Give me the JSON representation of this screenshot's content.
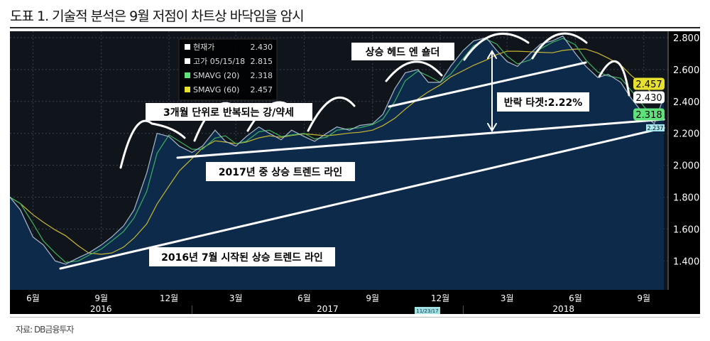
{
  "title": "도표 1. 기술적 분석은 9월 저점이 차트상 바닥임을 암시",
  "source": "자료: DB금융투자",
  "chart_data": {
    "type": "line",
    "title": "",
    "ylim": [
      1.2,
      2.86
    ],
    "yticks": [
      "1.400",
      "1.600",
      "1.800",
      "2.000",
      "2.200",
      "2.400",
      "2.600",
      "2.800"
    ],
    "xticks": [
      "6월",
      "9월",
      "12월",
      "3월",
      "6월",
      "9월",
      "12월",
      "3월",
      "6월",
      "9월"
    ],
    "years": [
      "2016",
      "2017",
      "2018"
    ],
    "cursor_date": "11/23/17",
    "grid": true,
    "legend": {
      "placement": "top-left",
      "items": [
        {
          "label": "현재가",
          "value": "2.430",
          "color": "#ffffff"
        },
        {
          "label": "고가 05/15/18",
          "value": "2.815",
          "color": "#ffffff"
        },
        {
          "label": "SMAVG (20)",
          "value": "2.318",
          "color": "#5ee07a"
        },
        {
          "label": "SMAVG (60)",
          "value": "2.457",
          "color": "#e8e030"
        }
      ]
    },
    "last_labels": [
      {
        "value": "2.457",
        "color": "#e8e030"
      },
      {
        "value": "2.430",
        "color": "#ffffff"
      },
      {
        "value": "2.318",
        "color": "#5ee07a"
      },
      {
        "value": "2.237",
        "color": "#a8e8f0"
      }
    ],
    "series": {
      "x": [
        "2016-05-01",
        "2016-05-15",
        "2016-06-01",
        "2016-06-15",
        "2016-07-01",
        "2016-07-15",
        "2016-08-01",
        "2016-08-15",
        "2016-09-01",
        "2016-09-15",
        "2016-10-01",
        "2016-10-15",
        "2016-11-01",
        "2016-11-15",
        "2016-12-01",
        "2016-12-15",
        "2017-01-01",
        "2017-01-15",
        "2017-02-01",
        "2017-02-15",
        "2017-03-01",
        "2017-03-15",
        "2017-04-01",
        "2017-04-15",
        "2017-05-01",
        "2017-05-15",
        "2017-06-01",
        "2017-06-15",
        "2017-07-01",
        "2017-07-15",
        "2017-08-01",
        "2017-08-15",
        "2017-09-01",
        "2017-09-15",
        "2017-10-01",
        "2017-10-15",
        "2017-11-01",
        "2017-11-15",
        "2017-12-01",
        "2017-12-15",
        "2018-01-01",
        "2018-01-15",
        "2018-02-01",
        "2018-02-15",
        "2018-03-01",
        "2018-03-15",
        "2018-04-01",
        "2018-04-15",
        "2018-05-01",
        "2018-05-15",
        "2018-06-01",
        "2018-06-15",
        "2018-07-01",
        "2018-07-15",
        "2018-08-01",
        "2018-08-15",
        "2018-09-01",
        "2018-09-15",
        "2018-09-28"
      ],
      "values": [
        1.8,
        1.72,
        1.55,
        1.5,
        1.4,
        1.38,
        1.42,
        1.45,
        1.5,
        1.55,
        1.62,
        1.72,
        1.95,
        2.2,
        2.18,
        2.12,
        2.08,
        2.12,
        2.22,
        2.15,
        2.12,
        2.18,
        2.24,
        2.2,
        2.16,
        2.22,
        2.18,
        2.15,
        2.2,
        2.24,
        2.22,
        2.25,
        2.26,
        2.32,
        2.48,
        2.58,
        2.6,
        2.52,
        2.52,
        2.62,
        2.72,
        2.78,
        2.8,
        2.72,
        2.65,
        2.62,
        2.7,
        2.76,
        2.78,
        2.81,
        2.7,
        2.62,
        2.55,
        2.57,
        2.52,
        2.42,
        2.32,
        2.26,
        2.43
      ]
    }
  },
  "annotations": {
    "a1": "3개월 단위로 반복되는 강/약세",
    "a2": "상승 헤드 엔 숄더",
    "a3": "반락 타겟:2.22%",
    "a4": "2017년 중 상승 트렌드 라인",
    "a5": "2016년 7월 시작된 상승 트렌드 라인"
  }
}
